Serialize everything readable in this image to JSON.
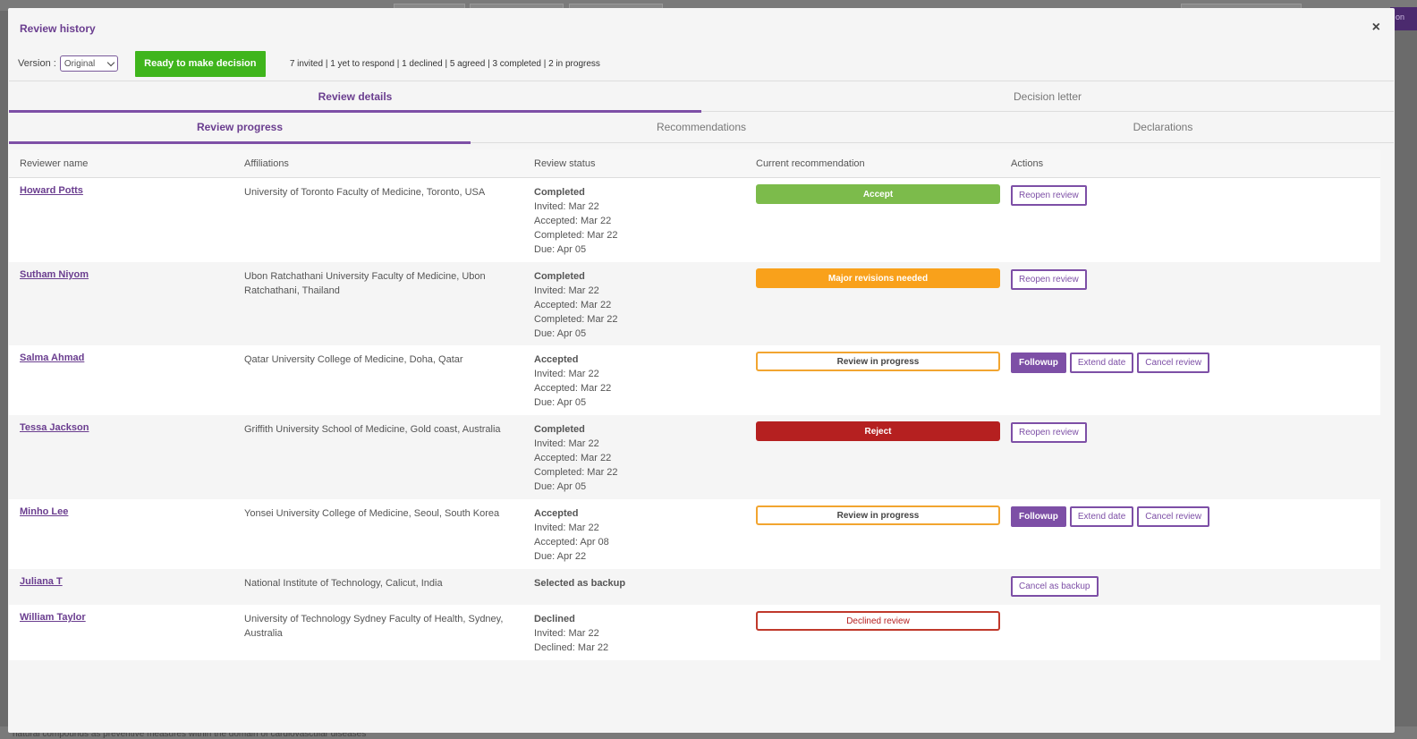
{
  "background": {
    "bottom_text": "natural compounds as preventive measures within the domain of cardiovascular diseases",
    "corner_chip": "on"
  },
  "modal": {
    "title": "Review history",
    "close_label": "×"
  },
  "toolbar": {
    "version_label": "Version :",
    "version_value": "Original",
    "ready_button": "Ready to make decision",
    "summary": "7 invited | 1 yet to respond | 1 declined | 5 agreed | 3 completed | 2 in progress"
  },
  "tabs": [
    {
      "label": "Review details",
      "active": true
    },
    {
      "label": "Decision letter",
      "active": false
    }
  ],
  "subtabs": [
    {
      "label": "Review progress",
      "active": true
    },
    {
      "label": "Recommendations",
      "active": false
    },
    {
      "label": "Declarations",
      "active": false
    }
  ],
  "table": {
    "headers": [
      "Reviewer name",
      "Affiliations",
      "Review status",
      "Current recommendation",
      "Actions"
    ],
    "rows": [
      {
        "name": "Howard Potts",
        "affiliation": "University of Toronto Faculty of Medicine, Toronto, USA",
        "status": "Completed",
        "details": [
          "Invited: Mar 22",
          "Accepted: Mar 22",
          "Completed: Mar 22",
          "Due: Apr 05"
        ],
        "recommendation": "Accept",
        "rec_style": "accept",
        "actions": [
          {
            "label": "Reopen review",
            "primary": false
          }
        ]
      },
      {
        "name": "Sutham Niyom",
        "affiliation": "Ubon Ratchathani University Faculty of Medicine, Ubon Ratchathani, Thailand",
        "status": "Completed",
        "details": [
          "Invited: Mar 22",
          "Accepted: Mar 22",
          "Completed: Mar 22",
          "Due: Apr 05"
        ],
        "recommendation": "Major revisions needed",
        "rec_style": "major",
        "actions": [
          {
            "label": "Reopen review",
            "primary": false
          }
        ]
      },
      {
        "name": "Salma Ahmad",
        "affiliation": "Qatar University College of Medicine, Doha, Qatar",
        "status": "Accepted",
        "details": [
          "Invited: Mar 22",
          "Accepted: Mar 22",
          "Due: Apr 05"
        ],
        "recommendation": "Review in progress",
        "rec_style": "progress",
        "actions": [
          {
            "label": "Followup",
            "primary": true
          },
          {
            "label": "Extend date",
            "primary": false
          },
          {
            "label": "Cancel review",
            "primary": false
          }
        ]
      },
      {
        "name": "Tessa Jackson",
        "affiliation": "Griffith University School of Medicine, Gold coast, Australia",
        "status": "Completed",
        "details": [
          "Invited: Mar 22",
          "Accepted: Mar 22",
          "Completed: Mar 22",
          "Due: Apr 05"
        ],
        "recommendation": "Reject",
        "rec_style": "reject",
        "actions": [
          {
            "label": "Reopen review",
            "primary": false
          }
        ]
      },
      {
        "name": "Minho Lee",
        "affiliation": "Yonsei University College of Medicine, Seoul, South Korea",
        "status": "Accepted",
        "details": [
          "Invited: Mar 22",
          "Accepted: Apr 08",
          "Due: Apr 22"
        ],
        "recommendation": "Review in progress",
        "rec_style": "progress",
        "actions": [
          {
            "label": "Followup",
            "primary": true
          },
          {
            "label": "Extend date",
            "primary": false
          },
          {
            "label": "Cancel review",
            "primary": false
          }
        ]
      },
      {
        "name": "Juliana T",
        "affiliation": "National Institute of Technology, Calicut, India",
        "status": "Selected as backup",
        "details": [],
        "recommendation": "",
        "rec_style": "none",
        "actions": [
          {
            "label": "Cancel as backup",
            "primary": false
          }
        ]
      },
      {
        "name": "William Taylor",
        "affiliation": "University of Technology Sydney Faculty of Health, Sydney, Australia",
        "status": "Declined",
        "details": [
          "Invited: Mar 22",
          "Declined: Mar 22"
        ],
        "recommendation": "Declined review",
        "rec_style": "declined",
        "actions": []
      }
    ]
  }
}
